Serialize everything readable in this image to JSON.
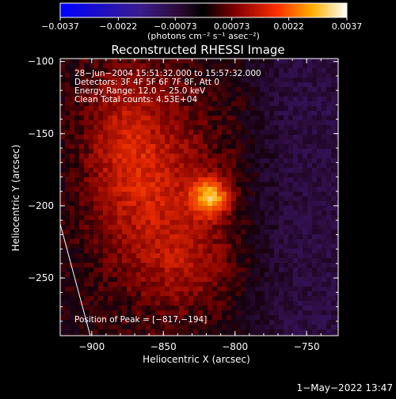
{
  "chart_data": {
    "type": "heatmap",
    "title": "Reconstructed RHESSI Image",
    "xlabel": "Heliocentric X (arcsec)",
    "ylabel": "Heliocentric Y (arcsec)",
    "xlim": [
      -922,
      -728
    ],
    "ylim": [
      -290,
      -98
    ],
    "x_ticks": [
      {
        "v": -900,
        "label": "−900"
      },
      {
        "v": -850,
        "label": "−850"
      },
      {
        "v": -800,
        "label": "−800"
      },
      {
        "v": -750,
        "label": "−750"
      }
    ],
    "y_ticks": [
      {
        "v": -100,
        "label": "−100"
      },
      {
        "v": -150,
        "label": "−150"
      },
      {
        "v": -200,
        "label": "−200"
      },
      {
        "v": -250,
        "label": "−250"
      }
    ],
    "colorbar": {
      "min": -0.0037,
      "max": 0.0037,
      "ticks": [
        {
          "v": -0.0037,
          "label": "−0.0037"
        },
        {
          "v": -0.0022,
          "label": "−0.0022"
        },
        {
          "v": -0.00073,
          "label": "−0.00073"
        },
        {
          "v": 0.00073,
          "label": "0.00073"
        },
        {
          "v": 0.0022,
          "label": "0.0022"
        },
        {
          "v": 0.0037,
          "label": "0.0037"
        }
      ],
      "unit_label": "(photons cm⁻² s⁻¹ asec⁻²)",
      "colormap": "blue-purple-red-yellow-white"
    },
    "annotations": [
      "28−Jun−2004 15:51:32.000 to 15:57:32.000",
      "Detectors: 3F 4F 5F 6F 7F 8F, Att 0",
      "Energy Range: 12.0 − 25.0 keV",
      "Clean     Total counts: 4.53E+04"
    ],
    "peak_label": "Position of Peak = [−817,−194]",
    "peak": {
      "x": -817,
      "y": -194
    },
    "grid": false
  },
  "footer": {
    "timestamp": "1−May−2022 13:47"
  }
}
